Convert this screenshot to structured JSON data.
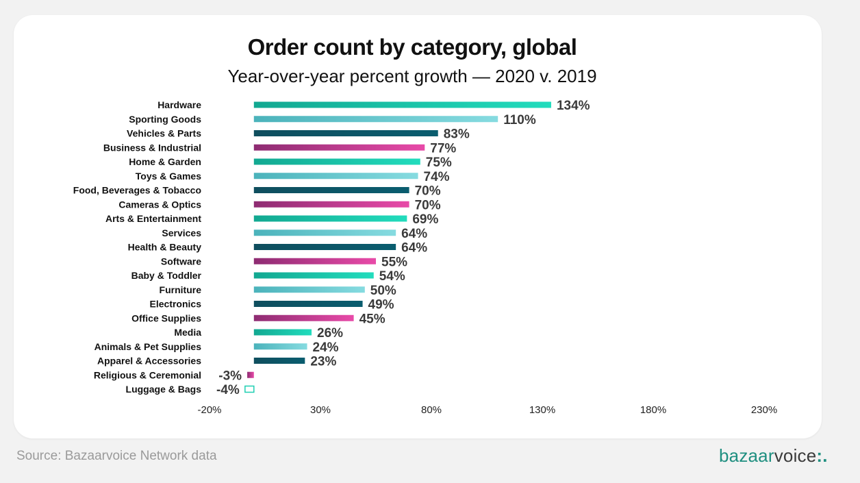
{
  "colors": {
    "teal": "#1ecfb2",
    "light_teal": "#6fcfd5",
    "dark_teal": "#0b4f60",
    "magenta": "#b83a8f",
    "magenta_light": "#e04aa5"
  },
  "footer": {
    "source": "Source: Bazaarvoice Network data",
    "logo_main": "bazaar",
    "logo_voice": "voice",
    "logo_dots": ":."
  },
  "chart_data": {
    "type": "bar",
    "orientation": "horizontal",
    "title": "Order count by category, global",
    "subtitle": "Year-over-year percent growth — 2020 v. 2019",
    "xlim": [
      -20,
      230
    ],
    "xticks": [
      -20,
      30,
      80,
      130,
      180,
      230
    ],
    "xtick_labels": [
      "-20%",
      "30%",
      "80%",
      "130%",
      "180%",
      "230%"
    ],
    "grid": false,
    "categories": [
      "Hardware",
      "Sporting Goods",
      "Vehicles & Parts",
      "Business & Industrial",
      "Home & Garden",
      "Toys & Games",
      "Food, Beverages & Tobacco",
      "Cameras & Optics",
      "Arts & Entertainment",
      "Services",
      "Health & Beauty",
      "Software",
      "Baby & Toddler",
      "Furniture",
      "Electronics",
      "Office Supplies",
      "Media",
      "Animals & Pet Supplies",
      "Apparel & Accessories",
      "Religious & Ceremonial",
      "Luggage & Bags"
    ],
    "values": [
      134,
      110,
      83,
      77,
      75,
      74,
      70,
      70,
      69,
      64,
      64,
      55,
      54,
      50,
      49,
      45,
      26,
      24,
      23,
      -3,
      -4
    ],
    "value_labels": [
      "134%",
      "110%",
      "83%",
      "77%",
      "75%",
      "74%",
      "70%",
      "70%",
      "69%",
      "64%",
      "64%",
      "55%",
      "54%",
      "50%",
      "49%",
      "45%",
      "26%",
      "24%",
      "23%",
      "-3%",
      "-4%"
    ],
    "bar_colors": [
      "teal",
      "light_teal",
      "dark_teal",
      "magenta",
      "teal",
      "light_teal",
      "dark_teal",
      "magenta",
      "teal",
      "light_teal",
      "dark_teal",
      "magenta",
      "teal",
      "light_teal",
      "dark_teal",
      "magenta",
      "teal",
      "light_teal",
      "dark_teal",
      "magenta",
      "outline"
    ]
  }
}
